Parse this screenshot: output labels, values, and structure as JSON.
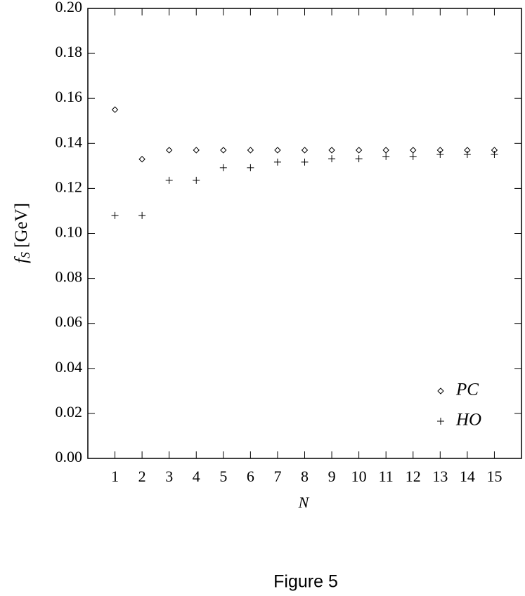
{
  "chart_data": {
    "type": "scatter",
    "x": [
      1,
      2,
      3,
      4,
      5,
      6,
      7,
      8,
      9,
      10,
      11,
      12,
      13,
      14,
      15
    ],
    "series": [
      {
        "name": "PC",
        "marker": "diamond",
        "color": "#000000",
        "values": [
          0.155,
          0.133,
          0.137,
          0.137,
          0.137,
          0.137,
          0.137,
          0.137,
          0.137,
          0.137,
          0.137,
          0.137,
          0.137,
          0.137,
          0.137
        ]
      },
      {
        "name": "HO",
        "marker": "plus",
        "color": "#000000",
        "values": [
          0.108,
          0.108,
          0.1236,
          0.1236,
          0.1292,
          0.1292,
          0.1317,
          0.1317,
          0.1332,
          0.1332,
          0.1342,
          0.1342,
          0.1351,
          0.1351,
          0.1351
        ]
      }
    ],
    "xlim": [
      0,
      16
    ],
    "xticks": [
      1,
      2,
      3,
      4,
      5,
      6,
      7,
      8,
      9,
      10,
      11,
      12,
      13,
      14,
      15
    ],
    "ylim": [
      0,
      0.2
    ],
    "yticks": [
      {
        "value": 0,
        "label": "0.00"
      },
      {
        "value": 0.02,
        "label": "0.02"
      },
      {
        "value": 0.04,
        "label": "0.04"
      },
      {
        "value": 0.06,
        "label": "0.06"
      },
      {
        "value": 0.08,
        "label": "0.08"
      },
      {
        "value": 0.1,
        "label": "0.10"
      },
      {
        "value": 0.12,
        "label": "0.12"
      },
      {
        "value": 0.14,
        "label": "0.14"
      },
      {
        "value": 0.16,
        "label": "0.16"
      },
      {
        "value": 0.18,
        "label": "0.18"
      },
      {
        "value": 0.2,
        "label": "0.20"
      }
    ],
    "x_label": "N",
    "y_label": {
      "symbol": "f",
      "subscript": "S",
      "unit": "[GeV]"
    },
    "legend": "lower right",
    "caption": "Figure 5"
  }
}
